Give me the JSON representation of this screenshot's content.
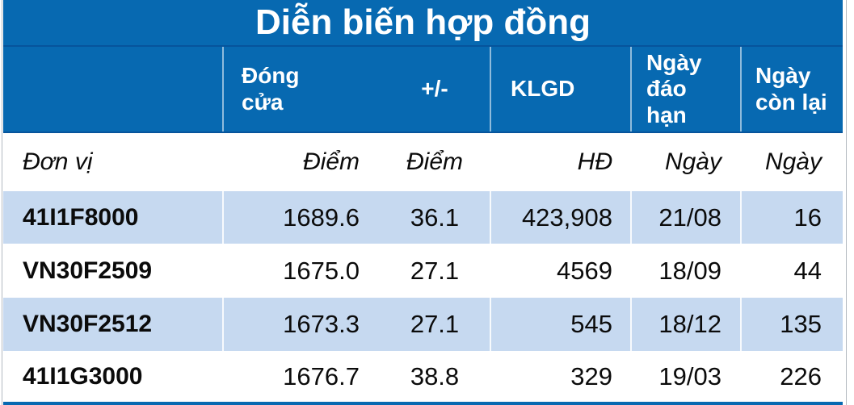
{
  "title": "Diễn biến hợp đồng",
  "colors": {
    "header_bg": "#0769B1",
    "header_divider": "#06549C",
    "band_row_bg": "#C6D9F0",
    "plain_row_bg": "#FFFFFF",
    "title_text": "#FFFFFF",
    "body_text": "#0B0B0B"
  },
  "table": {
    "headers": [
      "",
      "Đóng cửa",
      "+/-",
      "KLGD",
      "Ngày đáo hạn",
      "Ngày còn lại"
    ],
    "units": [
      "Đơn vị",
      "Điểm",
      "Điểm",
      "HĐ",
      "Ngày",
      "Ngày"
    ],
    "rows": [
      {
        "name": "41I1F8000",
        "close": "1689.6",
        "change": "36.1",
        "volume": "423,908",
        "expiry_date": "21/08",
        "days_left": "16"
      },
      {
        "name": "VN30F2509",
        "close": "1675.0",
        "change": "27.1",
        "volume": "4569",
        "expiry_date": "18/09",
        "days_left": "44"
      },
      {
        "name": "VN30F2512",
        "close": "1673.3",
        "change": "27.1",
        "volume": "545",
        "expiry_date": "18/12",
        "days_left": "135"
      },
      {
        "name": "41I1G3000",
        "close": "1676.7",
        "change": "38.8",
        "volume": "329",
        "expiry_date": "19/03",
        "days_left": "226"
      }
    ]
  }
}
